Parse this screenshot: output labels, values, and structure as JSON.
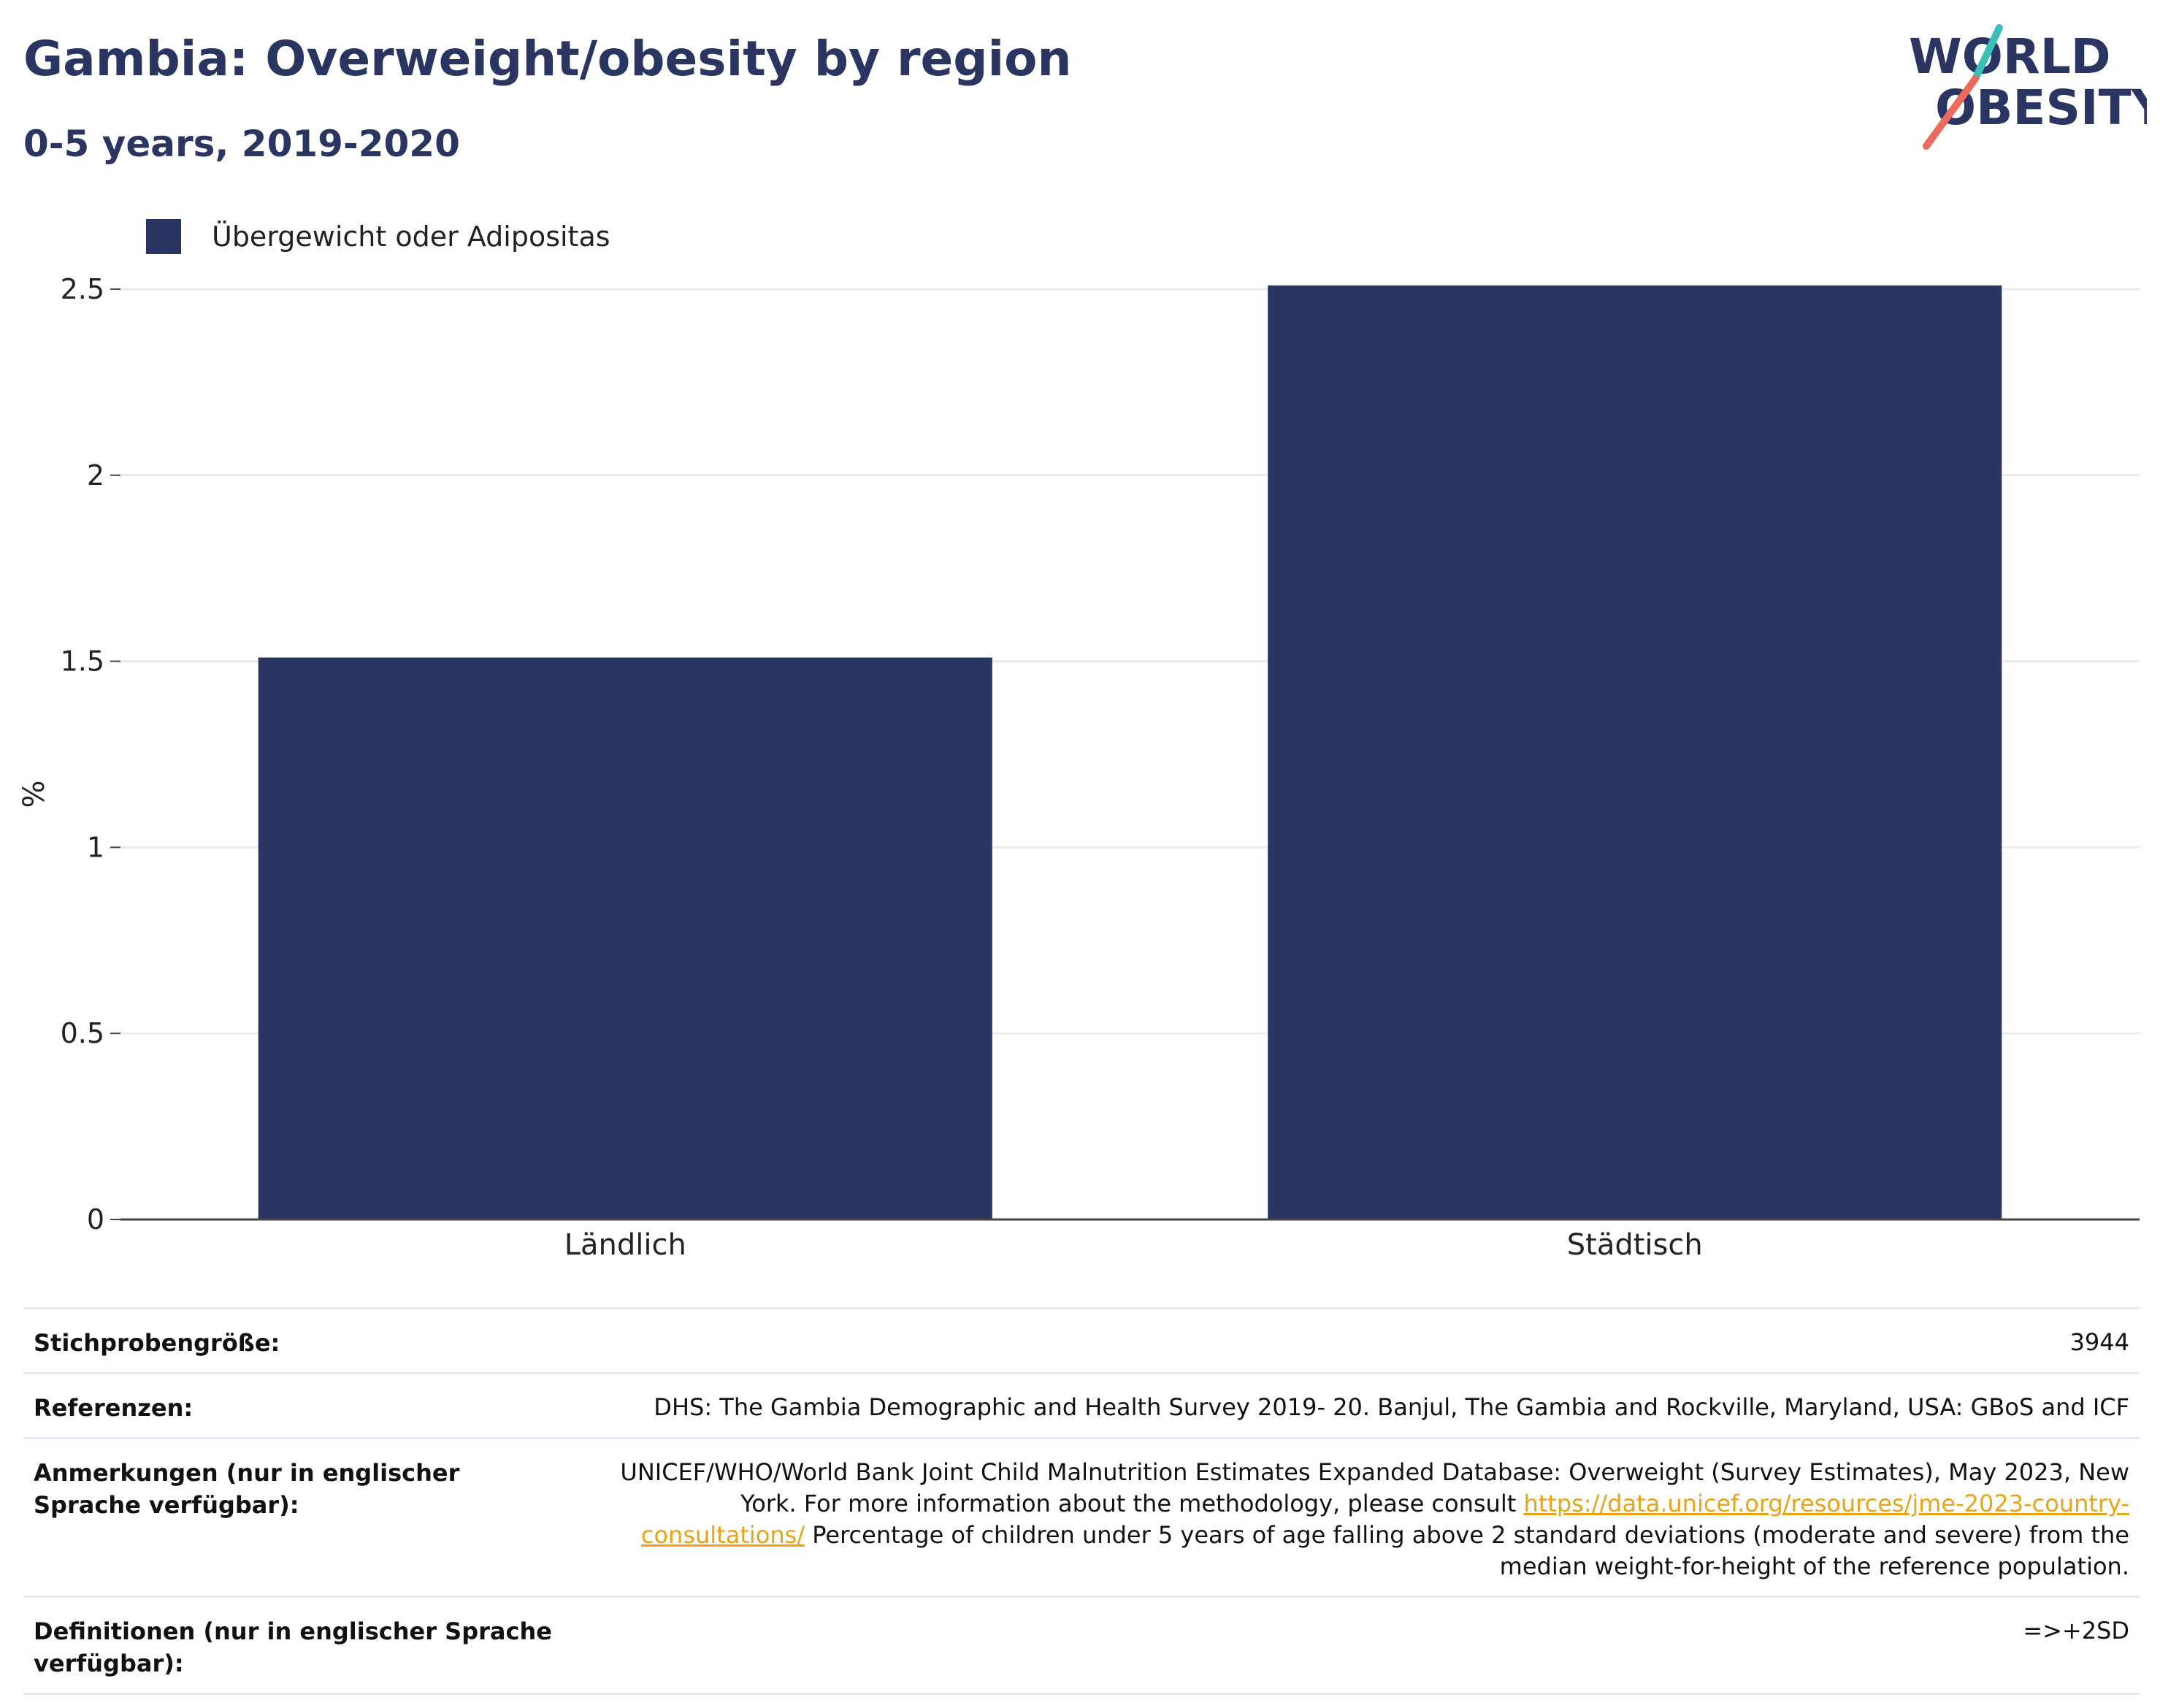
{
  "header": {
    "title": "Gambia: Overweight/obesity by region",
    "subtitle": "0-5 years, 2019-2020",
    "logo_line1": "WORLD",
    "logo_line2": "OBESITY"
  },
  "legend": {
    "label": "Übergewicht oder Adipositas",
    "color": "#2a3562"
  },
  "chart_data": {
    "type": "bar",
    "categories": [
      "Ländlich",
      "Städtisch"
    ],
    "series": [
      {
        "name": "Übergewicht oder Adipositas",
        "values": [
          1.51,
          2.51
        ],
        "color": "#2a3562"
      }
    ],
    "ylabel": "%",
    "ylim": [
      0,
      2.6
    ],
    "yticks": [
      0,
      0.5,
      1,
      1.5,
      2,
      2.5
    ],
    "ytick_labels": [
      "0",
      "0.5",
      "1",
      "1.5",
      "2",
      "2.5"
    ],
    "grid": true,
    "legend_position": "top-left"
  },
  "info": {
    "sample_label": "Stichprobengröße:",
    "sample_value": "3944",
    "references_label": "Referenzen:",
    "references_value": "DHS: The Gambia Demographic and Health Survey 2019- 20. Banjul, The Gambia and Rockville, Maryland, USA: GBoS and ICF",
    "notes_label": "Anmerkungen (nur in englischer Sprache verfügbar):",
    "notes_text_1": "UNICEF/WHO/World Bank Joint Child Malnutrition Estimates Expanded Database: Overweight (Survey Estimates), May 2023, New York. For more information about the methodology, please consult ",
    "notes_link": "https://data.unicef.org/resources/jme-2023-country-consultations/",
    "notes_text_2": " Percentage of children under 5 years of age falling above 2 standard deviations (moderate and severe) from the median weight-for-height of the reference population.",
    "definitions_label": "Definitionen (nur in englischer Sprache verfügbar):",
    "definitions_value": "=>+2SD"
  },
  "colors": {
    "brand_navy": "#2a3562",
    "brand_teal": "#3bbfb8",
    "brand_coral": "#ec6b5d",
    "link": "#e8a317"
  }
}
